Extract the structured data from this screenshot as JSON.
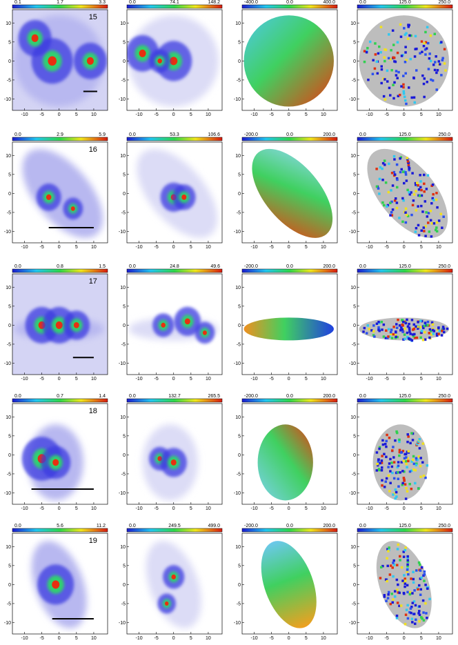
{
  "axis": {
    "xticks": [
      -10,
      -5,
      0,
      5,
      10
    ],
    "yticks": [
      10,
      5,
      0,
      -5,
      -10
    ]
  },
  "rows": [
    {
      "label": "15",
      "colorbars": [
        [
          "0.1",
          "1.7",
          "3.3"
        ],
        [
          "0.0",
          "74.1",
          "148.2"
        ],
        [
          "-400.0",
          "0.0",
          "400.0"
        ],
        [
          "0.0",
          "125.0",
          "250.0"
        ]
      ]
    },
    {
      "label": "16",
      "colorbars": [
        [
          "0.0",
          "2.9",
          "5.9"
        ],
        [
          "0.0",
          "53.3",
          "106.6"
        ],
        [
          "-200.0",
          "0.0",
          "200.0"
        ],
        [
          "0.0",
          "125.0",
          "250.0"
        ]
      ]
    },
    {
      "label": "17",
      "colorbars": [
        [
          "0.0",
          "0.8",
          "1.5"
        ],
        [
          "0.0",
          "24.8",
          "49.6"
        ],
        [
          "-200.0",
          "0.0",
          "200.0"
        ],
        [
          "0.0",
          "125.0",
          "250.0"
        ]
      ]
    },
    {
      "label": "18",
      "colorbars": [
        [
          "0.0",
          "0.7",
          "1.4"
        ],
        [
          "0.0",
          "132.7",
          "265.5"
        ],
        [
          "-200.0",
          "0.0",
          "200.0"
        ],
        [
          "0.0",
          "125.0",
          "250.0"
        ]
      ]
    },
    {
      "label": "19",
      "colorbars": [
        [
          "0.0",
          "5.6",
          "11.2"
        ],
        [
          "0.0",
          "249.5",
          "499.0"
        ],
        [
          "-200.0",
          "0.0",
          "200.0"
        ],
        [
          "0.0",
          "125.0",
          "250.0"
        ]
      ]
    }
  ]
}
